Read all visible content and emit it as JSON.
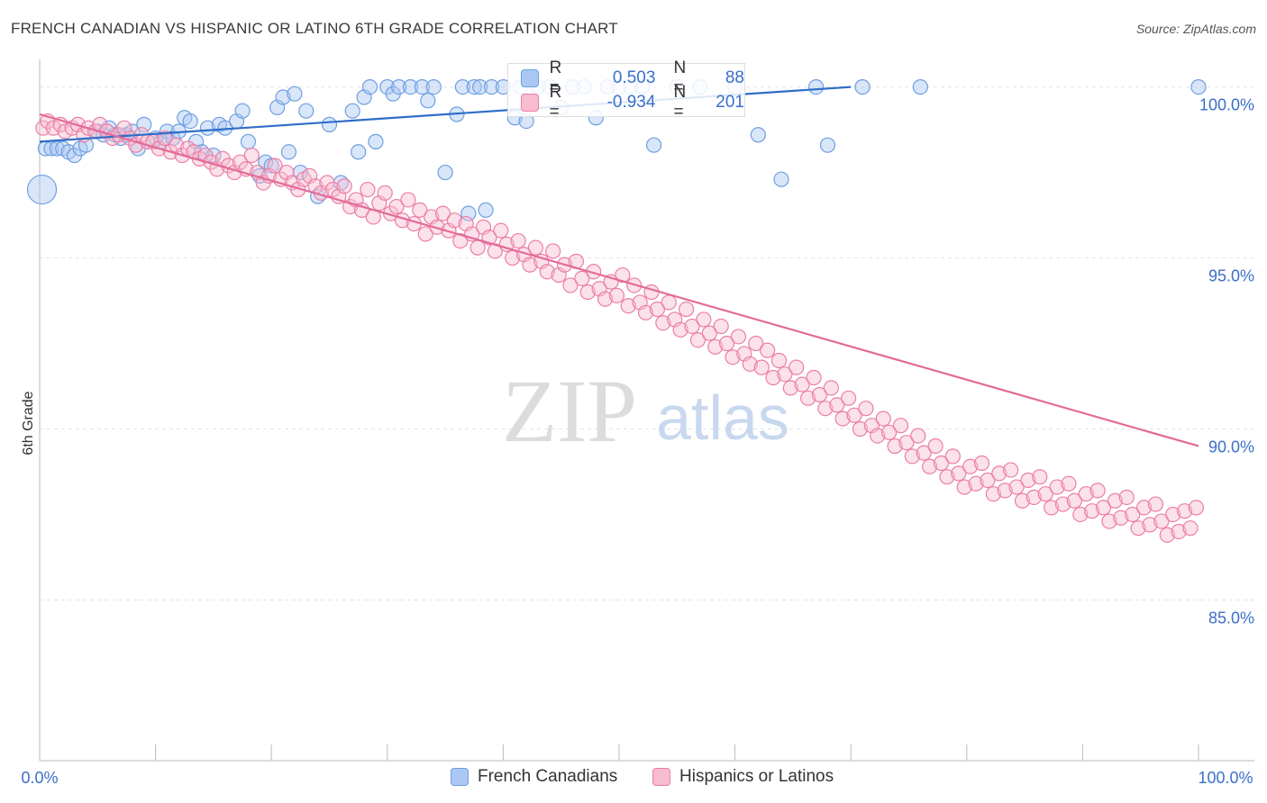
{
  "title": "FRENCH CANADIAN VS HISPANIC OR LATINO 6TH GRADE CORRELATION CHART",
  "source": "Source: ZipAtlas.com",
  "watermark": {
    "zip": "ZIP",
    "atlas": "atlas"
  },
  "colors": {
    "blue": "#6e9fe0",
    "blue_fill": "#aac8f3",
    "blue_line": "#2f6dc8",
    "pink": "#ec7ea6",
    "pink_fill": "#f7bcd0",
    "pink_line": "#e26b99",
    "tick_text": "#3b6fc9",
    "grid": "#e3e3e3"
  },
  "stats": [
    {
      "r_label": "R =",
      "r_value": "0.503",
      "n_label": "N =",
      "n_value": "88",
      "color": "blue"
    },
    {
      "r_label": "R =",
      "r_value": "-0.934",
      "n_label": "N =",
      "n_value": "201",
      "color": "pink"
    }
  ],
  "legend": [
    "French Canadians",
    "Hispanics or Latinos"
  ],
  "chart_data": {
    "type": "scatter",
    "ylabel": "6th Grade",
    "x_tick_labels": [
      "0.0%",
      "100.0%"
    ],
    "y_tick_labels": [
      "100.0%",
      "95.0%",
      "90.0%",
      "85.0%"
    ],
    "xlim": [
      0,
      100
    ],
    "ylim": [
      80.3,
      100.7
    ],
    "grid": true,
    "series": [
      {
        "name": "French Canadians",
        "color": "blue",
        "trend": [
          [
            0,
            98.4
          ],
          [
            70,
            100.0
          ]
        ],
        "points": [
          [
            0.2,
            97.0
          ],
          [
            0.5,
            98.2
          ],
          [
            1,
            98.2
          ],
          [
            1.5,
            98.2
          ],
          [
            2,
            98.2
          ],
          [
            2.5,
            98.1
          ],
          [
            3,
            98.0
          ],
          [
            3.5,
            98.2
          ],
          [
            4,
            98.3
          ],
          [
            5,
            98.7
          ],
          [
            5.5,
            98.6
          ],
          [
            6,
            98.8
          ],
          [
            6.5,
            98.6
          ],
          [
            7,
            98.5
          ],
          [
            7.5,
            98.6
          ],
          [
            8,
            98.7
          ],
          [
            8.5,
            98.2
          ],
          [
            9,
            98.9
          ],
          [
            10,
            98.5
          ],
          [
            10.5,
            98.4
          ],
          [
            11,
            98.7
          ],
          [
            11.5,
            98.5
          ],
          [
            12,
            98.7
          ],
          [
            12.5,
            99.1
          ],
          [
            13,
            99.0
          ],
          [
            13.5,
            98.4
          ],
          [
            14,
            98.1
          ],
          [
            14.5,
            98.8
          ],
          [
            15,
            98.0
          ],
          [
            15.5,
            98.9
          ],
          [
            16,
            98.8
          ],
          [
            17,
            99.0
          ],
          [
            17.5,
            99.3
          ],
          [
            18,
            98.4
          ],
          [
            19,
            97.4
          ],
          [
            19.5,
            97.8
          ],
          [
            20,
            97.7
          ],
          [
            20.5,
            99.4
          ],
          [
            21,
            99.7
          ],
          [
            21.5,
            98.1
          ],
          [
            22,
            99.8
          ],
          [
            22.5,
            97.5
          ],
          [
            23,
            99.3
          ],
          [
            24,
            96.8
          ],
          [
            25,
            98.9
          ],
          [
            26,
            97.2
          ],
          [
            27,
            99.3
          ],
          [
            27.5,
            98.1
          ],
          [
            28,
            99.7
          ],
          [
            28.5,
            100.0
          ],
          [
            29,
            98.4
          ],
          [
            30,
            100.0
          ],
          [
            30.5,
            99.8
          ],
          [
            31,
            100.0
          ],
          [
            32,
            100.0
          ],
          [
            33,
            100.0
          ],
          [
            33.5,
            99.6
          ],
          [
            34,
            100.0
          ],
          [
            35,
            97.5
          ],
          [
            36,
            99.2
          ],
          [
            36.5,
            100.0
          ],
          [
            37,
            96.3
          ],
          [
            37.5,
            100.0
          ],
          [
            38,
            100.0
          ],
          [
            38.5,
            96.4
          ],
          [
            39,
            100.0
          ],
          [
            40,
            100.0
          ],
          [
            41,
            99.1
          ],
          [
            41.5,
            100.0
          ],
          [
            42,
            99.0
          ],
          [
            43,
            100.0
          ],
          [
            44,
            100.0
          ],
          [
            45,
            99.4
          ],
          [
            46,
            100.0
          ],
          [
            47,
            100.0
          ],
          [
            48,
            99.1
          ],
          [
            49,
            100.0
          ],
          [
            50,
            100.0
          ],
          [
            51,
            100.0
          ],
          [
            52,
            100.0
          ],
          [
            53,
            98.3
          ],
          [
            55,
            100.0
          ],
          [
            57,
            100.0
          ],
          [
            60,
            100.0
          ],
          [
            62,
            98.6
          ],
          [
            64,
            97.3
          ],
          [
            67,
            100.0
          ],
          [
            68,
            98.3
          ],
          [
            71,
            100.0
          ],
          [
            76,
            100.0
          ],
          [
            100,
            100.0
          ]
        ]
      },
      {
        "name": "Hispanics or Latinos",
        "color": "pink",
        "trend": [
          [
            0,
            99.2
          ],
          [
            100,
            89.5
          ]
        ],
        "points": [
          [
            0.3,
            98.8
          ],
          [
            0.7,
            99.0
          ],
          [
            1.2,
            98.8
          ],
          [
            1.8,
            98.9
          ],
          [
            2.2,
            98.7
          ],
          [
            2.8,
            98.8
          ],
          [
            3.3,
            98.9
          ],
          [
            3.8,
            98.6
          ],
          [
            4.2,
            98.8
          ],
          [
            4.8,
            98.7
          ],
          [
            5.2,
            98.9
          ],
          [
            5.8,
            98.7
          ],
          [
            6.3,
            98.5
          ],
          [
            6.8,
            98.6
          ],
          [
            7.3,
            98.8
          ],
          [
            7.8,
            98.5
          ],
          [
            8.3,
            98.3
          ],
          [
            8.8,
            98.6
          ],
          [
            9.3,
            98.4
          ],
          [
            9.8,
            98.4
          ],
          [
            10.3,
            98.2
          ],
          [
            10.8,
            98.5
          ],
          [
            11.3,
            98.1
          ],
          [
            11.8,
            98.3
          ],
          [
            12.3,
            98.0
          ],
          [
            12.8,
            98.2
          ],
          [
            13.3,
            98.1
          ],
          [
            13.8,
            97.9
          ],
          [
            14.3,
            98.0
          ],
          [
            14.8,
            97.8
          ],
          [
            15.3,
            97.6
          ],
          [
            15.8,
            97.9
          ],
          [
            16.3,
            97.7
          ],
          [
            16.8,
            97.5
          ],
          [
            17.3,
            97.8
          ],
          [
            17.8,
            97.6
          ],
          [
            18.3,
            98.0
          ],
          [
            18.8,
            97.5
          ],
          [
            19.3,
            97.2
          ],
          [
            19.8,
            97.4
          ],
          [
            20.3,
            97.7
          ],
          [
            20.8,
            97.3
          ],
          [
            21.3,
            97.5
          ],
          [
            21.8,
            97.2
          ],
          [
            22.3,
            97.0
          ],
          [
            22.8,
            97.3
          ],
          [
            23.3,
            97.4
          ],
          [
            23.8,
            97.1
          ],
          [
            24.3,
            96.9
          ],
          [
            24.8,
            97.2
          ],
          [
            25.3,
            97.0
          ],
          [
            25.8,
            96.8
          ],
          [
            26.3,
            97.1
          ],
          [
            26.8,
            96.5
          ],
          [
            27.3,
            96.7
          ],
          [
            27.8,
            96.4
          ],
          [
            28.3,
            97.0
          ],
          [
            28.8,
            96.2
          ],
          [
            29.3,
            96.6
          ],
          [
            29.8,
            96.9
          ],
          [
            30.3,
            96.3
          ],
          [
            30.8,
            96.5
          ],
          [
            31.3,
            96.1
          ],
          [
            31.8,
            96.7
          ],
          [
            32.3,
            96.0
          ],
          [
            32.8,
            96.4
          ],
          [
            33.3,
            95.7
          ],
          [
            33.8,
            96.2
          ],
          [
            34.3,
            95.9
          ],
          [
            34.8,
            96.3
          ],
          [
            35.3,
            95.8
          ],
          [
            35.8,
            96.1
          ],
          [
            36.3,
            95.5
          ],
          [
            36.8,
            96.0
          ],
          [
            37.3,
            95.7
          ],
          [
            37.8,
            95.3
          ],
          [
            38.3,
            95.9
          ],
          [
            38.8,
            95.6
          ],
          [
            39.3,
            95.2
          ],
          [
            39.8,
            95.8
          ],
          [
            40.3,
            95.4
          ],
          [
            40.8,
            95.0
          ],
          [
            41.3,
            95.5
          ],
          [
            41.8,
            95.1
          ],
          [
            42.3,
            94.8
          ],
          [
            42.8,
            95.3
          ],
          [
            43.3,
            94.9
          ],
          [
            43.8,
            94.6
          ],
          [
            44.3,
            95.2
          ],
          [
            44.8,
            94.5
          ],
          [
            45.3,
            94.8
          ],
          [
            45.8,
            94.2
          ],
          [
            46.3,
            94.9
          ],
          [
            46.8,
            94.4
          ],
          [
            47.3,
            94.0
          ],
          [
            47.8,
            94.6
          ],
          [
            48.3,
            94.1
          ],
          [
            48.8,
            93.8
          ],
          [
            49.3,
            94.3
          ],
          [
            49.8,
            93.9
          ],
          [
            50.3,
            94.5
          ],
          [
            50.8,
            93.6
          ],
          [
            51.3,
            94.2
          ],
          [
            51.8,
            93.7
          ],
          [
            52.3,
            93.4
          ],
          [
            52.8,
            94.0
          ],
          [
            53.3,
            93.5
          ],
          [
            53.8,
            93.1
          ],
          [
            54.3,
            93.7
          ],
          [
            54.8,
            93.2
          ],
          [
            55.3,
            92.9
          ],
          [
            55.8,
            93.5
          ],
          [
            56.3,
            93.0
          ],
          [
            56.8,
            92.6
          ],
          [
            57.3,
            93.2
          ],
          [
            57.8,
            92.8
          ],
          [
            58.3,
            92.4
          ],
          [
            58.8,
            93.0
          ],
          [
            59.3,
            92.5
          ],
          [
            59.8,
            92.1
          ],
          [
            60.3,
            92.7
          ],
          [
            60.8,
            92.2
          ],
          [
            61.3,
            91.9
          ],
          [
            61.8,
            92.5
          ],
          [
            62.3,
            91.8
          ],
          [
            62.8,
            92.3
          ],
          [
            63.3,
            91.5
          ],
          [
            63.8,
            92.0
          ],
          [
            64.3,
            91.6
          ],
          [
            64.8,
            91.2
          ],
          [
            65.3,
            91.8
          ],
          [
            65.8,
            91.3
          ],
          [
            66.3,
            90.9
          ],
          [
            66.8,
            91.5
          ],
          [
            67.3,
            91.0
          ],
          [
            67.8,
            90.6
          ],
          [
            68.3,
            91.2
          ],
          [
            68.8,
            90.7
          ],
          [
            69.3,
            90.3
          ],
          [
            69.8,
            90.9
          ],
          [
            70.3,
            90.4
          ],
          [
            70.8,
            90.0
          ],
          [
            71.3,
            90.6
          ],
          [
            71.8,
            90.1
          ],
          [
            72.3,
            89.8
          ],
          [
            72.8,
            90.3
          ],
          [
            73.3,
            89.9
          ],
          [
            73.8,
            89.5
          ],
          [
            74.3,
            90.1
          ],
          [
            74.8,
            89.6
          ],
          [
            75.3,
            89.2
          ],
          [
            75.8,
            89.8
          ],
          [
            76.3,
            89.3
          ],
          [
            76.8,
            88.9
          ],
          [
            77.3,
            89.5
          ],
          [
            77.8,
            89.0
          ],
          [
            78.3,
            88.6
          ],
          [
            78.8,
            89.2
          ],
          [
            79.3,
            88.7
          ],
          [
            79.8,
            88.3
          ],
          [
            80.3,
            88.9
          ],
          [
            80.8,
            88.4
          ],
          [
            81.3,
            89.0
          ],
          [
            81.8,
            88.5
          ],
          [
            82.3,
            88.1
          ],
          [
            82.8,
            88.7
          ],
          [
            83.3,
            88.2
          ],
          [
            83.8,
            88.8
          ],
          [
            84.3,
            88.3
          ],
          [
            84.8,
            87.9
          ],
          [
            85.3,
            88.5
          ],
          [
            85.8,
            88.0
          ],
          [
            86.3,
            88.6
          ],
          [
            86.8,
            88.1
          ],
          [
            87.3,
            87.7
          ],
          [
            87.8,
            88.3
          ],
          [
            88.3,
            87.8
          ],
          [
            88.8,
            88.4
          ],
          [
            89.3,
            87.9
          ],
          [
            89.8,
            87.5
          ],
          [
            90.3,
            88.1
          ],
          [
            90.8,
            87.6
          ],
          [
            91.3,
            88.2
          ],
          [
            91.8,
            87.7
          ],
          [
            92.3,
            87.3
          ],
          [
            92.8,
            87.9
          ],
          [
            93.3,
            87.4
          ],
          [
            93.8,
            88.0
          ],
          [
            94.3,
            87.5
          ],
          [
            94.8,
            87.1
          ],
          [
            95.3,
            87.7
          ],
          [
            95.8,
            87.2
          ],
          [
            96.3,
            87.8
          ],
          [
            96.8,
            87.3
          ],
          [
            97.3,
            86.9
          ],
          [
            97.8,
            87.5
          ],
          [
            98.3,
            87.0
          ],
          [
            98.8,
            87.6
          ],
          [
            99.3,
            87.1
          ],
          [
            99.8,
            87.7
          ]
        ]
      }
    ]
  }
}
